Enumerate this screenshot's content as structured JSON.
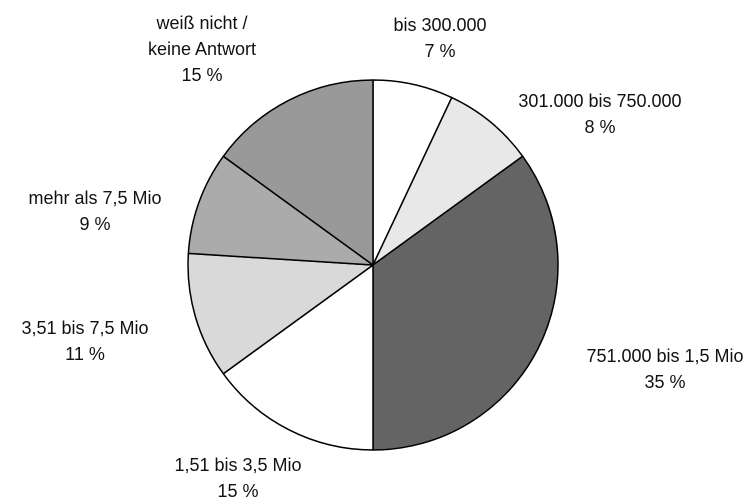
{
  "chart_data": {
    "type": "pie",
    "categories": [
      "bis 300.000",
      "301.000 bis 750.000",
      "751.000 bis 1,5 Mio",
      "1,51 bis 3,5 Mio",
      "3,51 bis 7,5 Mio",
      "mehr als 7,5 Mio",
      "weiß nicht /\nkeine Antwort"
    ],
    "values": [
      7,
      8,
      35,
      15,
      11,
      9,
      15
    ],
    "value_labels": [
      "7 %",
      "8 %",
      "35 %",
      "15 %",
      "11 %",
      "9 %",
      "15 %"
    ],
    "colors": [
      "#ffffff",
      "#e8e8e8",
      "#646464",
      "#ffffff",
      "#d9d9d9",
      "#ababab",
      "#999999"
    ]
  }
}
